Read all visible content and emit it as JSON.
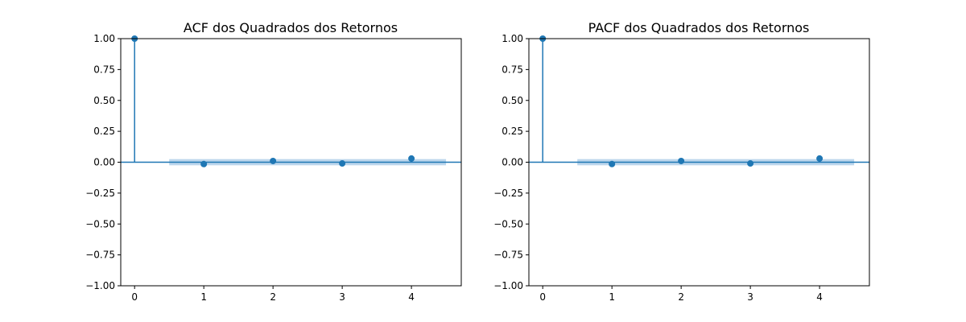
{
  "chart_data": [
    {
      "type": "stem",
      "title": "ACF dos Quadrados dos Retornos",
      "xlabel": "",
      "ylabel": "",
      "x": [
        0,
        1,
        2,
        3,
        4
      ],
      "values": [
        1.0,
        -0.015,
        0.01,
        -0.01,
        0.03
      ],
      "confidence_band": {
        "x_range": [
          0.5,
          4.5
        ],
        "lower": -0.025,
        "upper": 0.025
      },
      "xlim": [
        -0.2,
        4.72
      ],
      "ylim": [
        -1.0,
        1.0
      ],
      "xticks": [
        0,
        1,
        2,
        3,
        4
      ],
      "xtick_labels": [
        "0",
        "1",
        "2",
        "3",
        "4"
      ],
      "yticks": [
        1.0,
        0.75,
        0.5,
        0.25,
        0.0,
        -0.25,
        -0.5,
        -0.75,
        -1.0
      ],
      "ytick_labels": [
        "1.00",
        "0.75",
        "0.50",
        "0.25",
        "0.00",
        "−0.25",
        "−0.50",
        "−0.75",
        "−1.00"
      ],
      "grid": false,
      "color": "#1f77b4",
      "band_color": "#a6c8e6"
    },
    {
      "type": "stem",
      "title": "PACF dos Quadrados dos Retornos",
      "xlabel": "",
      "ylabel": "",
      "x": [
        0,
        1,
        2,
        3,
        4
      ],
      "values": [
        1.0,
        -0.015,
        0.01,
        -0.01,
        0.03
      ],
      "confidence_band": {
        "x_range": [
          0.5,
          4.5
        ],
        "lower": -0.025,
        "upper": 0.025
      },
      "xlim": [
        -0.2,
        4.72
      ],
      "ylim": [
        -1.0,
        1.0
      ],
      "xticks": [
        0,
        1,
        2,
        3,
        4
      ],
      "xtick_labels": [
        "0",
        "1",
        "2",
        "3",
        "4"
      ],
      "yticks": [
        1.0,
        0.75,
        0.5,
        0.25,
        0.0,
        -0.25,
        -0.5,
        -0.75,
        -1.0
      ],
      "ytick_labels": [
        "1.00",
        "0.75",
        "0.50",
        "0.25",
        "0.00",
        "−0.25",
        "−0.50",
        "−0.75",
        "−1.00"
      ],
      "grid": false,
      "color": "#1f77b4",
      "band_color": "#a6c8e6"
    }
  ]
}
